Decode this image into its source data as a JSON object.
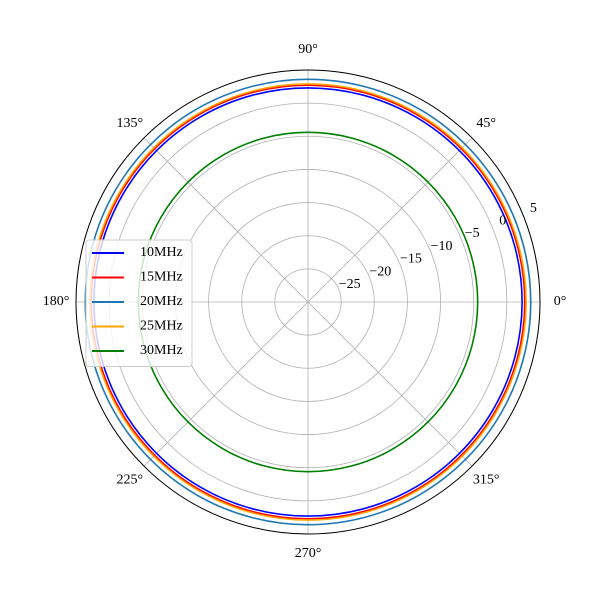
{
  "chart_data": {
    "type": "polar",
    "x": [
      0,
      15,
      30,
      45,
      60,
      75,
      90,
      105,
      120,
      135,
      150,
      165,
      180,
      195,
      210,
      225,
      240,
      255,
      270,
      285,
      300,
      315,
      330,
      345,
      360
    ],
    "series": [
      {
        "name": "10MHz",
        "color": "#0000ff",
        "values": [
          2.3,
          2.3,
          2.3,
          2.3,
          2.3,
          2.3,
          2.3,
          2.3,
          2.3,
          2.3,
          2.3,
          2.3,
          2.3,
          2.3,
          2.3,
          2.3,
          2.3,
          2.3,
          2.3,
          2.3,
          2.3,
          2.3,
          2.3,
          2.3,
          2.3
        ]
      },
      {
        "name": "15MHz",
        "color": "#ff0000",
        "values": [
          2.7,
          2.7,
          2.7,
          2.7,
          2.7,
          2.7,
          2.7,
          2.7,
          2.7,
          2.7,
          2.7,
          2.7,
          2.7,
          2.7,
          2.7,
          2.7,
          2.7,
          2.7,
          2.7,
          2.7,
          2.7,
          2.7,
          2.7,
          2.7,
          2.7
        ]
      },
      {
        "name": "20MHz",
        "color": "#1f77b4",
        "values": [
          3.6,
          3.6,
          3.6,
          3.6,
          3.6,
          3.6,
          3.6,
          3.6,
          3.6,
          3.6,
          3.6,
          3.6,
          3.6,
          3.6,
          3.6,
          3.6,
          3.6,
          3.6,
          3.6,
          3.6,
          3.6,
          3.6,
          3.6,
          3.6,
          3.6
        ]
      },
      {
        "name": "25MHz",
        "color": "#ffa500",
        "values": [
          2.9,
          2.9,
          2.9,
          2.9,
          2.9,
          2.9,
          2.9,
          2.9,
          2.9,
          2.9,
          2.9,
          2.9,
          2.9,
          2.9,
          2.9,
          2.9,
          2.9,
          2.9,
          2.9,
          2.9,
          2.9,
          2.9,
          2.9,
          2.9,
          2.9
        ]
      },
      {
        "name": "30MHz",
        "color": "#008000",
        "values": [
          -4.4,
          -4.4,
          -4.4,
          -4.4,
          -4.4,
          -4.4,
          -4.4,
          -4.4,
          -4.4,
          -4.4,
          -4.4,
          -4.4,
          -4.4,
          -4.4,
          -4.4,
          -4.4,
          -4.4,
          -4.4,
          -4.4,
          -4.4,
          -4.4,
          -4.4,
          -4.4,
          -4.4,
          -4.4
        ]
      }
    ],
    "ylim": [
      -30,
      5
    ],
    "yticks": [
      {
        "value": -25,
        "label": "−25"
      },
      {
        "value": -20,
        "label": "−20"
      },
      {
        "value": -15,
        "label": "−15"
      },
      {
        "value": -10,
        "label": "−10"
      },
      {
        "value": -5,
        "label": "−5"
      },
      0,
      5
    ],
    "xticks": [
      {
        "value": 0,
        "label": "0°"
      },
      {
        "value": 45,
        "label": "45°"
      },
      {
        "value": 90,
        "label": "90°"
      },
      {
        "value": 135,
        "label": "135°"
      },
      {
        "value": 180,
        "label": "180°"
      },
      {
        "value": 225,
        "label": "225°"
      },
      {
        "value": 270,
        "label": "270°"
      },
      {
        "value": 315,
        "label": "315°"
      }
    ],
    "grid": true,
    "legend": "center left"
  }
}
